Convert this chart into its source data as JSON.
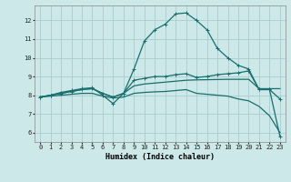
{
  "xlabel": "Humidex (Indice chaleur)",
  "bg_color": "#cce8e8",
  "grid_color": "#aacccc",
  "line_color": "#1a6e6e",
  "xlim": [
    -0.5,
    23.5
  ],
  "ylim": [
    5.5,
    12.8
  ],
  "xticks": [
    0,
    1,
    2,
    3,
    4,
    5,
    6,
    7,
    8,
    9,
    10,
    11,
    12,
    13,
    14,
    15,
    16,
    17,
    18,
    19,
    20,
    21,
    22,
    23
  ],
  "yticks": [
    6,
    7,
    8,
    9,
    10,
    11,
    12
  ],
  "line1_x": [
    0,
    1,
    2,
    3,
    4,
    5,
    6,
    7,
    8,
    9,
    10,
    11,
    12,
    13,
    14,
    15,
    16,
    17,
    18,
    19,
    20,
    21,
    22,
    23
  ],
  "line1_y": [
    7.9,
    8.0,
    8.15,
    8.25,
    8.35,
    8.4,
    8.0,
    7.55,
    8.1,
    9.4,
    10.9,
    11.5,
    11.8,
    12.35,
    12.4,
    12.0,
    11.5,
    10.5,
    10.0,
    9.6,
    9.4,
    8.3,
    8.3,
    7.8
  ],
  "line2_x": [
    0,
    1,
    2,
    3,
    4,
    5,
    6,
    7,
    8,
    9,
    10,
    11,
    12,
    13,
    14,
    15,
    16,
    17,
    18,
    19,
    20,
    21,
    22,
    23
  ],
  "line2_y": [
    7.9,
    8.0,
    8.1,
    8.2,
    8.3,
    8.35,
    8.1,
    7.9,
    8.1,
    8.8,
    8.9,
    9.0,
    9.0,
    9.1,
    9.15,
    8.95,
    9.0,
    9.1,
    9.15,
    9.2,
    9.3,
    8.3,
    8.3,
    5.8
  ],
  "line3_x": [
    0,
    1,
    2,
    3,
    4,
    5,
    6,
    7,
    8,
    9,
    10,
    11,
    12,
    13,
    14,
    15,
    16,
    17,
    18,
    19,
    20,
    21,
    22,
    23
  ],
  "line3_y": [
    7.9,
    8.0,
    8.1,
    8.2,
    8.3,
    8.35,
    8.1,
    7.9,
    8.1,
    8.5,
    8.6,
    8.65,
    8.7,
    8.75,
    8.8,
    8.82,
    8.83,
    8.84,
    8.85,
    8.85,
    8.85,
    8.35,
    8.35,
    8.35
  ],
  "line4_x": [
    0,
    1,
    2,
    3,
    4,
    5,
    6,
    7,
    8,
    9,
    10,
    11,
    12,
    13,
    14,
    15,
    16,
    17,
    18,
    19,
    20,
    21,
    22,
    23
  ],
  "line4_y": [
    7.9,
    7.95,
    8.0,
    8.05,
    8.1,
    8.1,
    7.95,
    7.85,
    7.9,
    8.1,
    8.15,
    8.18,
    8.2,
    8.25,
    8.3,
    8.1,
    8.05,
    8.0,
    7.95,
    7.8,
    7.7,
    7.4,
    6.9,
    6.0
  ]
}
